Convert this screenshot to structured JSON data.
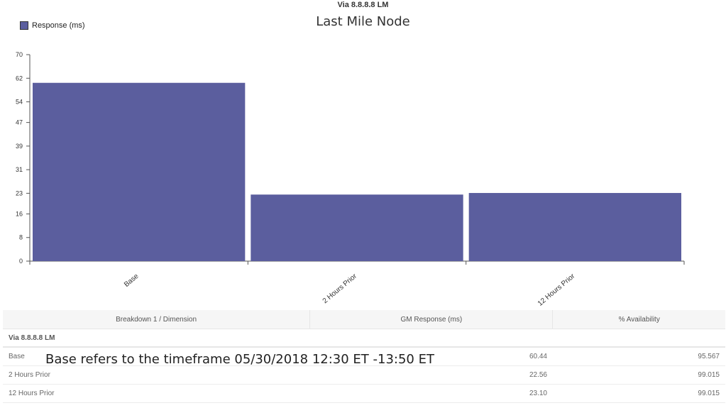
{
  "header": {
    "title": "Via 8.8.8.8 LM"
  },
  "chart_data": {
    "type": "bar",
    "title": "Last Mile Node",
    "categories": [
      "Base",
      "2 Hours Prior",
      "12 Hours Prior"
    ],
    "series": [
      {
        "name": "Response (ms)",
        "values": [
          60.44,
          22.56,
          23.1
        ],
        "color": "#5b5e9e"
      }
    ],
    "yticks": [
      "0",
      "8",
      "16",
      "23",
      "31",
      "39",
      "47",
      "54",
      "62",
      "70"
    ],
    "ylim": [
      0,
      70
    ],
    "legend": "top-left",
    "grid": false
  },
  "table": {
    "headers": [
      "Breakdown 1 / Dimension",
      "GM Response (ms)",
      "% Availability"
    ],
    "group": "Via 8.8.8.8 LM",
    "rows": [
      {
        "label": "Base",
        "response": "60.44",
        "availability": "95.567"
      },
      {
        "label": "2 Hours Prior",
        "response": "22.56",
        "availability": "99.015"
      },
      {
        "label": "12 Hours Prior",
        "response": "23.10",
        "availability": "99.015"
      }
    ]
  },
  "note": "Base refers to the timeframe 05/30/2018 12:30 ET -13:50 ET"
}
